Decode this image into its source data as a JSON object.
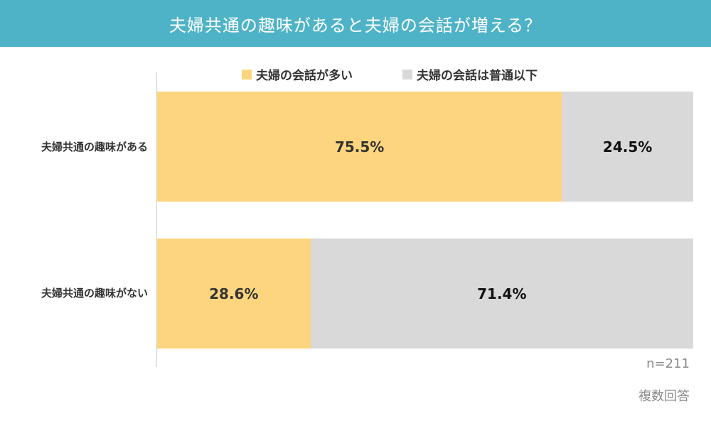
{
  "chart_data": {
    "type": "bar",
    "orientation": "horizontal",
    "stacked": true,
    "title": "夫婦共通の趣味があると夫婦の会話が増える？",
    "categories": [
      "夫婦共通の趣味がある",
      "夫婦共通の趣味がない"
    ],
    "series": [
      {
        "name": "夫婦の会話が多い",
        "values": [
          75.5,
          28.6
        ],
        "labels": [
          "75.5%",
          "28.6%"
        ],
        "color": "#fcd57e"
      },
      {
        "name": "夫婦の会話は普通以下",
        "values": [
          24.5,
          71.4
        ],
        "labels": [
          "24.5%",
          "71.4%"
        ],
        "color": "#d9d9d9"
      }
    ],
    "xlim": [
      0,
      100
    ],
    "legend_position": "top",
    "grid": false,
    "sample_size": "n=211",
    "note": "複数回答"
  },
  "colors": {
    "banner": "#4fb3c8"
  }
}
